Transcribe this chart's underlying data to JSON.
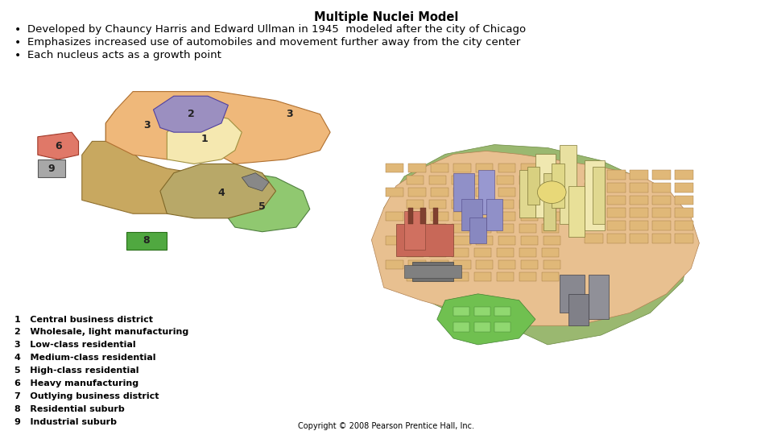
{
  "title": "Multiple Nuclei Model",
  "bullets": [
    "Developed by Chauncy Harris and Edward Ullman in 1945  modeled after the city of Chicago",
    "Emphasizes increased use of automobiles and movement further away from the city center",
    "Each nucleus acts as a growth point"
  ],
  "background_color": "#ffffff",
  "title_fontsize": 10.5,
  "bullet_fontsize": 9.5,
  "legend_items": [
    "1   Central business district",
    "2   Wholesale, light manufacturing",
    "3   Low-class residential",
    "4   Medium-class residential",
    "5   High-class residential",
    "6   Heavy manufacturing",
    "7   Outlying business district",
    "8   Residential suburb",
    "9   Industrial suburb"
  ],
  "copyright": "Copyright © 2008 Pearson Prentice Hall, Inc.",
  "zone_colors": {
    "1": "#F5E8B0",
    "2": "#9B8FC0",
    "3_top": "#E8B87A",
    "3_side": "#C8A060",
    "4": "#B8A870",
    "5": "#90C870",
    "6": "#E07868",
    "7": "#E07868",
    "8": "#50A840",
    "9": "#A8A8A8"
  }
}
